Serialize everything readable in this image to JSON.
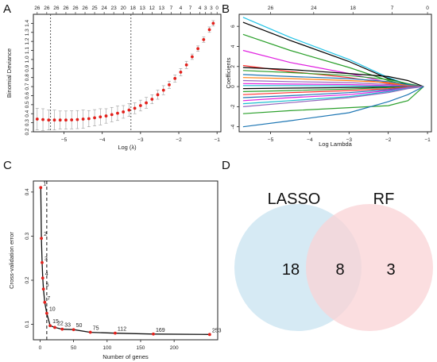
{
  "panels": {
    "a": {
      "letter": "A"
    },
    "b": {
      "letter": "B"
    },
    "c": {
      "letter": "C"
    },
    "d": {
      "letter": "D"
    }
  },
  "colors": {
    "cv_point": "#e3201b",
    "cv_errorbar": "#9a9a9a",
    "lambda_line": "#333333",
    "rfe_line": "#111111",
    "rfe_point": "#e3201b",
    "venn_lasso": "#cfe6f2",
    "venn_rf": "#f9d3d6"
  },
  "chart_data": [
    {
      "id": "A",
      "type": "line",
      "xlabel": "Log (λ)",
      "ylabel": "Binomial Deviance",
      "xlim": [
        -5.8,
        -0.9
      ],
      "ylim": [
        0.2,
        1.5
      ],
      "xticks": [
        -5,
        -4,
        -3,
        -2,
        -1
      ],
      "yticks": [
        0.2,
        0.3,
        0.4,
        0.5,
        0.6,
        0.7,
        0.8,
        0.9,
        1.0,
        1.1,
        1.2,
        1.3,
        1.4
      ],
      "top_axis": {
        "labels": [
          "26",
          "26",
          "26",
          "26",
          "26",
          "26",
          "25",
          "24",
          "23",
          "20",
          "18",
          "13",
          "12",
          "13",
          "7",
          "4",
          "7",
          "4",
          "3",
          "3",
          "0"
        ],
        "x": [
          -5.7,
          -5.45,
          -5.2,
          -4.95,
          -4.7,
          -4.45,
          -4.2,
          -3.95,
          -3.7,
          -3.45,
          -3.2,
          -2.95,
          -2.7,
          -2.45,
          -2.2,
          -1.95,
          -1.7,
          -1.45,
          -1.3,
          -1.15,
          -1.0
        ]
      },
      "vlines": [
        -5.35,
        -3.25
      ],
      "series": [
        {
          "x": [
            -5.7,
            -5.55,
            -5.4,
            -5.25,
            -5.1,
            -4.95,
            -4.8,
            -4.65,
            -4.5,
            -4.35,
            -4.2,
            -4.05,
            -3.9,
            -3.75,
            -3.6,
            -3.45,
            -3.3,
            -3.15,
            -3.0,
            -2.85,
            -2.7,
            -2.55,
            -2.4,
            -2.25,
            -2.1,
            -1.95,
            -1.8,
            -1.65,
            -1.5,
            -1.35,
            -1.2,
            -1.1
          ],
          "y": [
            0.34,
            0.335,
            0.33,
            0.33,
            0.33,
            0.33,
            0.332,
            0.335,
            0.34,
            0.345,
            0.355,
            0.365,
            0.375,
            0.39,
            0.405,
            0.42,
            0.44,
            0.46,
            0.49,
            0.52,
            0.56,
            0.61,
            0.66,
            0.72,
            0.79,
            0.86,
            0.94,
            1.03,
            1.12,
            1.22,
            1.33,
            1.4
          ],
          "err": [
            0.12,
            0.12,
            0.11,
            0.11,
            0.1,
            0.1,
            0.1,
            0.1,
            0.1,
            0.09,
            0.09,
            0.09,
            0.08,
            0.08,
            0.08,
            0.07,
            0.07,
            0.06,
            0.06,
            0.06,
            0.05,
            0.05,
            0.05,
            0.04,
            0.04,
            0.04,
            0.04,
            0.03,
            0.03,
            0.03,
            0.03,
            0.03
          ]
        }
      ]
    },
    {
      "id": "B",
      "type": "line",
      "xlabel": "Log Lambda",
      "ylabel": "Coefficients",
      "xlim": [
        -5.8,
        -0.9
      ],
      "ylim": [
        -4.5,
        7.2
      ],
      "xticks": [
        -5,
        -4,
        -3,
        -2,
        -1
      ],
      "yticks": [
        -4,
        -2,
        0,
        2,
        4,
        6
      ],
      "top_axis": {
        "labels": [
          "26",
          "24",
          "18",
          "7",
          "0"
        ],
        "x": [
          -5.0,
          -3.9,
          -2.9,
          -1.9,
          -1.0
        ]
      },
      "series": [
        {
          "color": "#22c3e6",
          "x": [
            -5.7,
            -4.5,
            -3,
            -2,
            -1.5,
            -1.1
          ],
          "y": [
            6.9,
            4.9,
            2.7,
            0.9,
            0.2,
            0
          ]
        },
        {
          "color": "#000000",
          "x": [
            -5.7,
            -4.5,
            -3,
            -2,
            -1.5,
            -1.1
          ],
          "y": [
            6.4,
            4.6,
            2.5,
            0.8,
            0.2,
            0
          ]
        },
        {
          "color": "#2ca02c",
          "x": [
            -5.7,
            -4.5,
            -3,
            -2,
            -1.5,
            -1.1
          ],
          "y": [
            5.2,
            3.6,
            1.9,
            0.6,
            0.1,
            0
          ]
        },
        {
          "color": "#e020e0",
          "x": [
            -5.7,
            -4.5,
            -3,
            -2,
            -1.5,
            -1.1
          ],
          "y": [
            3.6,
            2.4,
            1.3,
            0.4,
            0.1,
            0
          ]
        },
        {
          "color": "#ff3333",
          "x": [
            -5.7,
            -4.5,
            -3,
            -2,
            -1.5,
            -1.1
          ],
          "y": [
            2.1,
            1.5,
            0.9,
            0.3,
            0.05,
            0
          ]
        },
        {
          "color": "#000000",
          "x": [
            -5.7,
            -4.5,
            -3,
            -2,
            -1.5,
            -1.1
          ],
          "y": [
            1.9,
            1.7,
            1.3,
            1.0,
            0.6,
            0
          ]
        },
        {
          "color": "#2ca02c",
          "x": [
            -5.7,
            -4.5,
            -3,
            -2,
            -1.5,
            -1.1
          ],
          "y": [
            1.6,
            1.4,
            1.1,
            0.7,
            0.3,
            0
          ]
        },
        {
          "color": "#1f77b4",
          "x": [
            -5.7,
            -4.5,
            -3,
            -2,
            -1.5,
            -1.1
          ],
          "y": [
            1.2,
            1.0,
            0.8,
            0.5,
            0.2,
            0
          ]
        },
        {
          "color": "#ff7f0e",
          "x": [
            -5.7,
            -4.5,
            -3,
            -2,
            -1.5,
            -1.1
          ],
          "y": [
            0.9,
            0.8,
            0.6,
            0.4,
            0.1,
            0
          ]
        },
        {
          "color": "#9467bd",
          "x": [
            -5.7,
            -4.5,
            -3,
            -2,
            -1.5,
            -1.1
          ],
          "y": [
            0.6,
            0.5,
            0.4,
            0.2,
            0.05,
            0
          ]
        },
        {
          "color": "#e020e0",
          "x": [
            -5.7,
            -4.5,
            -3,
            -2,
            -1.5,
            -1.1
          ],
          "y": [
            0.3,
            0.25,
            0.2,
            0.1,
            0.03,
            0
          ]
        },
        {
          "color": "#17becf",
          "x": [
            -5.7,
            -4.5,
            -3,
            -2,
            -1.5,
            -1.1
          ],
          "y": [
            0.1,
            0.1,
            0.05,
            0.02,
            0,
            0
          ]
        },
        {
          "color": "#000000",
          "x": [
            -5.7,
            -4.5,
            -3,
            -2,
            -1.5,
            -1.1
          ],
          "y": [
            -0.2,
            -0.15,
            -0.1,
            -0.05,
            0,
            0
          ]
        },
        {
          "color": "#2ca02c",
          "x": [
            -5.7,
            -4.5,
            -3,
            -2,
            -1.5,
            -1.1
          ],
          "y": [
            -0.5,
            -0.4,
            -0.25,
            -0.1,
            0,
            0
          ]
        },
        {
          "color": "#ff3333",
          "x": [
            -5.7,
            -4.5,
            -3,
            -2,
            -1.5,
            -1.1
          ],
          "y": [
            -0.8,
            -0.6,
            -0.4,
            -0.2,
            -0.05,
            0
          ]
        },
        {
          "color": "#1f77b4",
          "x": [
            -5.7,
            -4.5,
            -3,
            -2,
            -1.5,
            -1.1
          ],
          "y": [
            -1.1,
            -0.9,
            -0.6,
            -0.3,
            -0.1,
            0
          ]
        },
        {
          "color": "#e020e0",
          "x": [
            -5.7,
            -4.5,
            -3,
            -2,
            -1.5,
            -1.1
          ],
          "y": [
            -1.4,
            -1.1,
            -0.8,
            -0.4,
            -0.1,
            0
          ]
        },
        {
          "color": "#17becf",
          "x": [
            -5.7,
            -4.5,
            -3,
            -2,
            -1.5,
            -1.1
          ],
          "y": [
            -1.7,
            -1.4,
            -1.0,
            -0.5,
            -0.15,
            0
          ]
        },
        {
          "color": "#9467bd",
          "x": [
            -5.7,
            -4.5,
            -3,
            -2,
            -1.5,
            -1.1
          ],
          "y": [
            -2.0,
            -1.6,
            -1.1,
            -0.6,
            -0.2,
            0
          ]
        },
        {
          "color": "#2ca02c",
          "x": [
            -5.7,
            -4.5,
            -3,
            -2.5,
            -2,
            -1.5,
            -1.1
          ],
          "y": [
            -2.7,
            -2.4,
            -2.1,
            -2.0,
            -1.9,
            -1.4,
            0
          ]
        },
        {
          "color": "#1f77b4",
          "x": [
            -5.7,
            -4.5,
            -3,
            -2,
            -1.5,
            -1.1
          ],
          "y": [
            -4.0,
            -3.4,
            -2.6,
            -1.5,
            -0.8,
            0
          ]
        }
      ]
    },
    {
      "id": "C",
      "type": "line",
      "xlabel": "Number of genes",
      "ylabel": "Cross-validation error",
      "xlim": [
        -10,
        265
      ],
      "ylim": [
        0.065,
        0.425
      ],
      "xticks": [
        0,
        50,
        100,
        150,
        200
      ],
      "yticks": [
        0.1,
        0.2,
        0.3,
        0.4
      ],
      "vline": 10,
      "series": [
        {
          "x": [
            1,
            2,
            3,
            4,
            5,
            7,
            10,
            15,
            22,
            33,
            50,
            75,
            112,
            169,
            253
          ],
          "y": [
            0.41,
            0.295,
            0.24,
            0.205,
            0.18,
            0.15,
            0.125,
            0.097,
            0.093,
            0.089,
            0.088,
            0.082,
            0.08,
            0.078,
            0.077
          ],
          "labels": [
            "1",
            "2",
            "3",
            "4",
            "5",
            "7",
            "10",
            "15",
            "22",
            "33",
            "50",
            "75",
            "112",
            "169",
            "253"
          ]
        }
      ]
    }
  ],
  "venn": {
    "left_label": "LASSO",
    "right_label": "RF",
    "left_only": "18",
    "intersection": "8",
    "right_only": "3"
  }
}
